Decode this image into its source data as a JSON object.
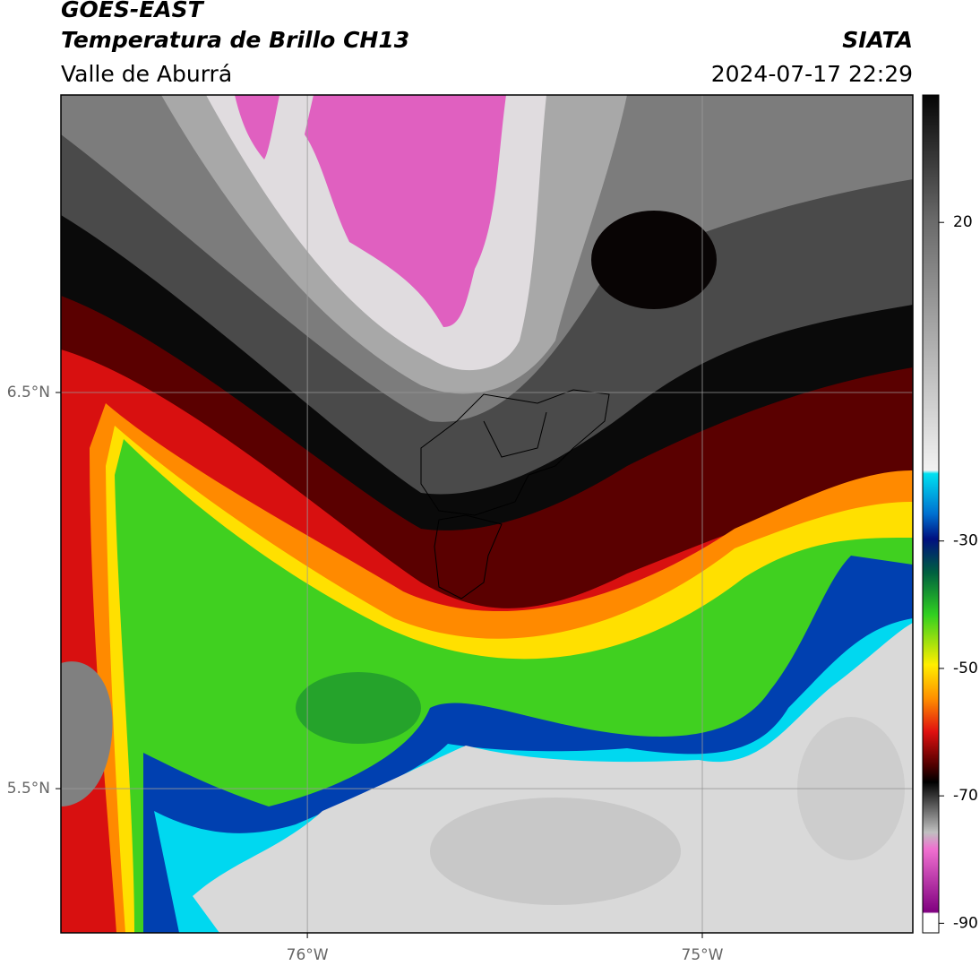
{
  "header": {
    "title": "GOES-EAST",
    "subtitle": "Temperatura de Brillo CH13",
    "region": "Valle de Aburrá",
    "source": "SIATA",
    "timestamp": "2024-07-17 22:29"
  },
  "map": {
    "xlim": [
      -76.624,
      -74.467
    ],
    "ylim": [
      5.136,
      7.251
    ],
    "xticks": [
      {
        "value": -76,
        "label": "76°W"
      },
      {
        "value": -75,
        "label": "75°W"
      }
    ],
    "yticks": [
      {
        "value": 6.5,
        "label": "6.5°N"
      },
      {
        "value": 5.5,
        "label": "5.5°N"
      }
    ],
    "grid": true
  },
  "colorbar": {
    "lim": [
      -91.5,
      40
    ],
    "ticks": [
      20,
      -30,
      -50,
      -70,
      -90
    ]
  }
}
